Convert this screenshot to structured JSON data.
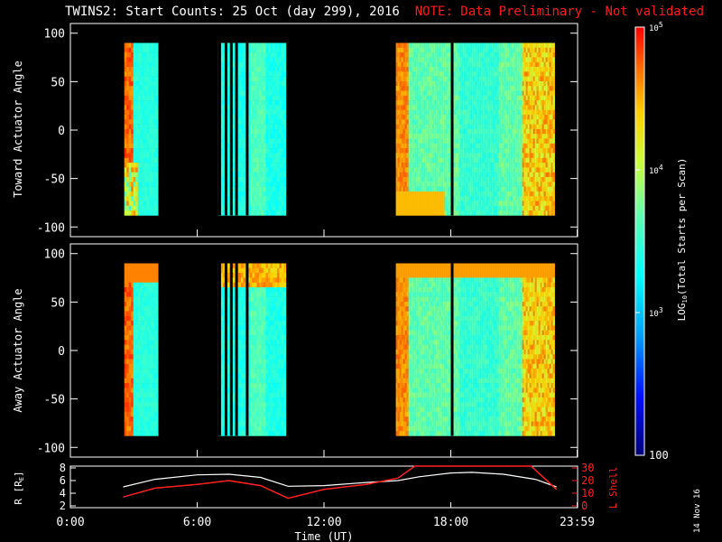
{
  "header": {
    "title": "TWINS2: Start Counts: 25 Oct (day 299), 2016",
    "note": "NOTE: Data Preliminary - Not validated"
  },
  "sidebar": {
    "date": "14 Nov 16"
  },
  "colors": {
    "background": "#000000",
    "axis": "#ffffff",
    "note": "#ff1a1a",
    "lshell": "#ff2020"
  },
  "chart_data": [
    {
      "type": "heatmap",
      "panel": "top",
      "ylabel": "Toward Actuator Angle",
      "ylim": [
        -110,
        110
      ],
      "yticks": [
        100,
        50,
        0,
        -50,
        -100
      ],
      "xlim": [
        0,
        24
      ],
      "x_tick_values": [
        0,
        6,
        12,
        18,
        23.98
      ],
      "y_range_data": [
        -88,
        90
      ],
      "x_gaps": [
        [
          4.1,
          7.0
        ],
        [
          10.2,
          15.4
        ]
      ],
      "x_dark_stripes": [
        7.0,
        7.3,
        7.55,
        7.8,
        8.3,
        18.0
      ],
      "note": "Colour = LOG10(total starts per scan); values qualitative"
    },
    {
      "type": "heatmap",
      "panel": "middle",
      "ylabel": "Away Actuator Angle",
      "ylim": [
        -110,
        110
      ],
      "yticks": [
        100,
        50,
        0,
        -50,
        -100
      ],
      "xlim": [
        0,
        24
      ],
      "x_tick_values": [
        0,
        6,
        12,
        18,
        23.98
      ],
      "y_range_data": [
        -88,
        90
      ],
      "x_gaps": [
        [
          4.1,
          7.0
        ],
        [
          10.2,
          15.4
        ]
      ],
      "x_dark_stripes": [
        7.0,
        7.3,
        7.55,
        7.8,
        8.3,
        18.0
      ]
    },
    {
      "type": "line",
      "panel": "bottom",
      "ylabel_left": "R [R",
      "ylabel_left_sub": "E",
      "ylabel_left_suffix": "]",
      "ylabel_right": "L Shell",
      "ylim_left": [
        2,
        8
      ],
      "yticks_left": [
        8,
        6,
        4,
        2
      ],
      "ylim_right": [
        0,
        30
      ],
      "yticks_right": [
        30,
        20,
        10,
        0
      ],
      "xlim": [
        0,
        24
      ],
      "xlabel": "Time (UT)",
      "xtick_labels": [
        "0:00",
        "6:00",
        "12:00",
        "18:00",
        "23:59"
      ],
      "xtick_values": [
        0,
        6,
        12,
        18,
        23.98
      ],
      "series": [
        {
          "name": "R",
          "axis": "left",
          "color": "#ffffff",
          "x": [
            2.5,
            4.0,
            6.0,
            7.5,
            9.0,
            10.3,
            12.0,
            14.0,
            15.5,
            16.5,
            18.0,
            19.0,
            20.5,
            22.0,
            23.0
          ],
          "y": [
            5.0,
            6.2,
            6.9,
            7.0,
            6.5,
            5.1,
            5.2,
            5.7,
            6.0,
            6.6,
            7.2,
            7.3,
            7.0,
            6.2,
            5.0
          ]
        },
        {
          "name": "L Shell",
          "axis": "right",
          "color": "#ff2020",
          "x": [
            2.5,
            4.0,
            6.0,
            7.5,
            9.0,
            10.3,
            12.0,
            14.0,
            15.5,
            16.3,
            21.8,
            23.0
          ],
          "y": [
            7,
            14,
            17,
            20,
            16,
            6,
            13,
            17,
            22,
            32,
            32,
            13
          ]
        }
      ]
    },
    {
      "type": "colorbar",
      "label": "LOG",
      "label_sub": "10",
      "label_suffix": "(Total Starts per Scan)",
      "ticks": [
        "10",
        "10",
        "10",
        "100"
      ],
      "tick_sups": [
        "5",
        "4",
        "3",
        ""
      ],
      "tick_values_log": [
        5,
        4,
        3,
        2
      ]
    }
  ]
}
